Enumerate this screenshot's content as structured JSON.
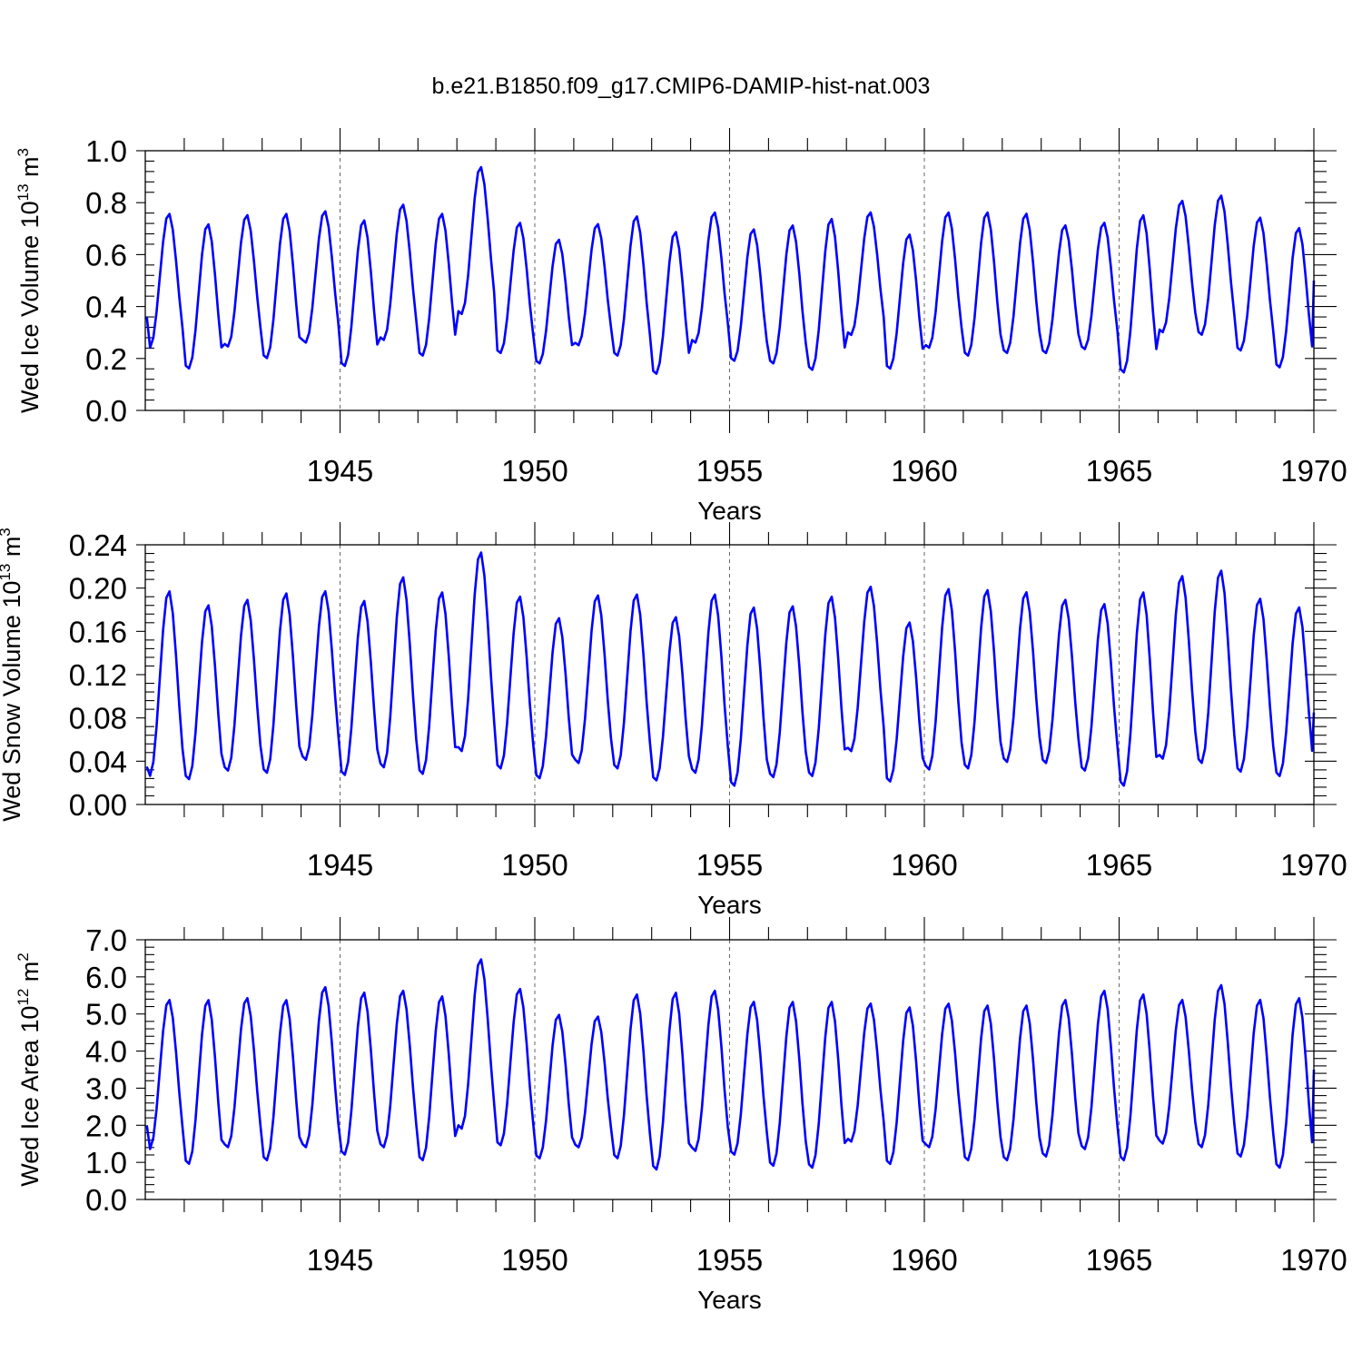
{
  "figure": {
    "title": "b.e21.B1850.f09_g17.CMIP6-DAMIP-hist-nat.003"
  },
  "colors": {
    "series": "#0000ff",
    "axis": "#000000",
    "grid": "#666666"
  },
  "chart_data": [
    {
      "type": "line",
      "id": "ice-volume",
      "title": "",
      "xlabel": "Years",
      "ylabel": "Wed Ice Volume 10",
      "ylabel_exponent": "13",
      "ylabel_unit": " m",
      "ylabel_unit_exponent": "3",
      "xlim": [
        1940,
        1970
      ],
      "ylim": [
        0.0,
        1.0
      ],
      "xticks": [
        1945,
        1950,
        1955,
        1960,
        1965,
        1970
      ],
      "xtick_labels": [
        "1945",
        "1950",
        "1955",
        "1960",
        "1965",
        "1970"
      ],
      "yticks": [
        0.0,
        0.2,
        0.4,
        0.6,
        0.8,
        1.0
      ],
      "ytick_labels": [
        "0.0",
        "0.2",
        "0.4",
        "0.6",
        "0.8",
        "1.0"
      ],
      "grid_x": [
        1945,
        1950,
        1955,
        1960,
        1965
      ],
      "series": [
        {
          "name": "Wed Ice Volume",
          "x_start": 1940.04,
          "x_step": 0.08333,
          "min": [
            0.24,
            0.16,
            0.245,
            0.2,
            0.26,
            0.17,
            0.27,
            0.21,
            0.37,
            0.22,
            0.18,
            0.25,
            0.21,
            0.14,
            0.26,
            0.19,
            0.18,
            0.155,
            0.29,
            0.16,
            0.24,
            0.21,
            0.22,
            0.22,
            0.235,
            0.145,
            0.3,
            0.29,
            0.23,
            0.165
          ],
          "max": [
            0.76,
            0.72,
            0.755,
            0.76,
            0.77,
            0.735,
            0.795,
            0.76,
            0.94,
            0.725,
            0.66,
            0.72,
            0.75,
            0.69,
            0.765,
            0.7,
            0.715,
            0.74,
            0.765,
            0.68,
            0.765,
            0.765,
            0.76,
            0.715,
            0.725,
            0.755,
            0.81,
            0.83,
            0.745,
            0.705
          ],
          "start_value": 0.36,
          "end_value": 0.5
        }
      ]
    },
    {
      "type": "line",
      "id": "snow-volume",
      "title": "",
      "xlabel": "Years",
      "ylabel": "Wed Snow Volume 10",
      "ylabel_exponent": "13",
      "ylabel_unit": " m",
      "ylabel_unit_exponent": "3",
      "xlim": [
        1940,
        1970
      ],
      "ylim": [
        0.0,
        0.24
      ],
      "xticks": [
        1945,
        1950,
        1955,
        1960,
        1965,
        1970
      ],
      "xtick_labels": [
        "1945",
        "1950",
        "1955",
        "1960",
        "1965",
        "1970"
      ],
      "yticks": [
        0.0,
        0.04,
        0.08,
        0.12,
        0.16,
        0.2,
        0.24
      ],
      "ytick_labels": [
        "0.00",
        "0.04",
        "0.08",
        "0.12",
        "0.16",
        "0.20",
        "0.24"
      ],
      "grid_x": [
        1945,
        1950,
        1955,
        1960,
        1965
      ],
      "series": [
        {
          "name": "Wed Snow Volume",
          "x_start": 1940.04,
          "x_step": 0.08333,
          "min": [
            0.026,
            0.023,
            0.031,
            0.029,
            0.041,
            0.027,
            0.034,
            0.028,
            0.049,
            0.033,
            0.024,
            0.038,
            0.033,
            0.022,
            0.029,
            0.017,
            0.025,
            0.026,
            0.049,
            0.021,
            0.032,
            0.033,
            0.039,
            0.038,
            0.031,
            0.017,
            0.042,
            0.038,
            0.03,
            0.026
          ],
          "max": [
            0.198,
            0.185,
            0.19,
            0.196,
            0.198,
            0.189,
            0.211,
            0.197,
            0.234,
            0.193,
            0.173,
            0.194,
            0.195,
            0.174,
            0.195,
            0.183,
            0.184,
            0.193,
            0.202,
            0.169,
            0.2,
            0.199,
            0.197,
            0.19,
            0.186,
            0.197,
            0.212,
            0.217,
            0.191,
            0.183
          ],
          "start_value": 0.035,
          "end_value": 0.085
        }
      ]
    },
    {
      "type": "line",
      "id": "ice-area",
      "title": "",
      "xlabel": "Years",
      "ylabel": "Wed Ice Area 10",
      "ylabel_exponent": "12",
      "ylabel_unit": " m",
      "ylabel_unit_exponent": "2",
      "xlim": [
        1940,
        1970
      ],
      "ylim": [
        0.0,
        7.0
      ],
      "xticks": [
        1945,
        1950,
        1955,
        1960,
        1965,
        1970
      ],
      "xtick_labels": [
        "1945",
        "1950",
        "1955",
        "1960",
        "1965",
        "1970"
      ],
      "yticks": [
        0.0,
        1.0,
        2.0,
        3.0,
        4.0,
        5.0,
        6.0,
        7.0
      ],
      "ytick_labels": [
        "0.0",
        "1.0",
        "2.0",
        "3.0",
        "4.0",
        "5.0",
        "6.0",
        "7.0"
      ],
      "grid_x": [
        1945,
        1950,
        1955,
        1960,
        1965
      ],
      "series": [
        {
          "name": "Wed Ice Area",
          "x_start": 1940.04,
          "x_step": 0.08333,
          "min": [
            1.35,
            0.95,
            1.4,
            1.05,
            1.4,
            1.2,
            1.4,
            1.05,
            1.9,
            1.45,
            1.1,
            1.4,
            1.1,
            0.8,
            1.3,
            1.2,
            0.9,
            0.85,
            1.55,
            0.95,
            1.4,
            1.05,
            1.05,
            1.15,
            1.35,
            1.05,
            1.5,
            1.4,
            1.15,
            0.85
          ],
          "max": [
            5.4,
            5.4,
            5.45,
            5.4,
            5.75,
            5.6,
            5.65,
            5.5,
            6.5,
            5.7,
            5.0,
            4.95,
            5.55,
            5.6,
            5.65,
            5.35,
            5.35,
            5.35,
            5.3,
            5.2,
            5.3,
            5.25,
            5.25,
            5.4,
            5.65,
            5.55,
            5.4,
            5.8,
            5.4,
            5.45
          ],
          "start_value": 2.0,
          "end_value": 3.5
        }
      ]
    }
  ]
}
